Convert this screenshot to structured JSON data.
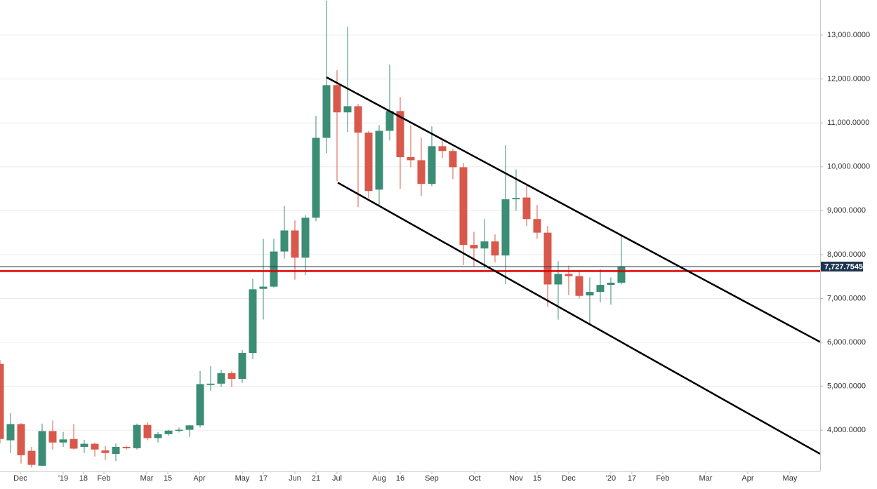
{
  "chart_data": {
    "type": "candlestick",
    "up_color": "#3b8d75",
    "down_color": "#d8584b",
    "grid": true,
    "xlim": [
      0,
      77.87
    ],
    "ylim": [
      3060,
      13800
    ],
    "yticks": [
      {
        "value": 4000,
        "label": "4,000.0000"
      },
      {
        "value": 5000,
        "label": "5,000.0000"
      },
      {
        "value": 6000,
        "label": "6,000.0000"
      },
      {
        "value": 7000,
        "label": "7,000.0000"
      },
      {
        "value": 8000,
        "label": "8,000.0000"
      },
      {
        "value": 9000,
        "label": "9,000.0000"
      },
      {
        "value": 10000,
        "label": "10,000.0000"
      },
      {
        "value": 11000,
        "label": "11,000.0000"
      },
      {
        "value": 12000,
        "label": "12,000.0000"
      },
      {
        "value": 13000,
        "label": "13,000.0000"
      }
    ],
    "xticks": [
      {
        "value": 1.93,
        "label": "Dec"
      },
      {
        "value": 6,
        "label": "'19"
      },
      {
        "value": 7.93,
        "label": "18"
      },
      {
        "value": 9.87,
        "label": "Feb"
      },
      {
        "value": 13.93,
        "label": "Mar"
      },
      {
        "value": 15.93,
        "label": "15"
      },
      {
        "value": 18.93,
        "label": "Apr"
      },
      {
        "value": 23,
        "label": "May"
      },
      {
        "value": 25,
        "label": "17"
      },
      {
        "value": 28,
        "label": "Jun"
      },
      {
        "value": 30,
        "label": "21"
      },
      {
        "value": 32,
        "label": "Jul"
      },
      {
        "value": 36,
        "label": "Aug"
      },
      {
        "value": 38,
        "label": "16"
      },
      {
        "value": 41,
        "label": "Sep"
      },
      {
        "value": 45.07,
        "label": "Oct"
      },
      {
        "value": 49,
        "label": "Nov"
      },
      {
        "value": 51,
        "label": "15"
      },
      {
        "value": 54,
        "label": "Dec"
      },
      {
        "value": 58,
        "label": "'20"
      },
      {
        "value": 60,
        "label": "17"
      },
      {
        "value": 62.93,
        "label": "Feb"
      },
      {
        "value": 67,
        "label": "Mar"
      },
      {
        "value": 71,
        "label": "Apr"
      },
      {
        "value": 75,
        "label": "May"
      }
    ],
    "x": [
      0,
      1,
      2,
      3,
      4,
      5,
      6,
      7,
      8,
      9,
      10,
      11,
      12,
      13,
      14,
      15,
      16,
      17,
      18,
      19,
      20,
      21,
      22,
      23,
      24,
      25,
      26,
      27,
      28,
      29,
      30,
      31,
      32,
      33,
      34,
      35,
      36,
      37,
      38,
      39,
      40,
      41,
      42,
      43,
      44,
      45,
      46,
      47,
      48,
      49,
      50,
      51,
      52,
      53,
      54,
      55,
      56,
      57,
      58,
      59
    ],
    "open": [
      5510,
      3770,
      4140,
      3530,
      3190,
      3980,
      3720,
      3800,
      3620,
      3690,
      3540,
      3460,
      3620,
      3590,
      4120,
      3820,
      3910,
      3990,
      4010,
      4110,
      5030,
      5060,
      5300,
      5170,
      5760,
      7220,
      7270,
      8070,
      8550,
      7930,
      8840,
      10660,
      11860,
      11240,
      11380,
      10780,
      9480,
      10820,
      11270,
      10220,
      10150,
      9610,
      10470,
      10360,
      9990,
      8220,
      8140,
      8300,
      7980,
      9260,
      9300,
      8810,
      8500,
      7320,
      7560,
      7510,
      7070,
      7150,
      7310,
      7360
    ],
    "high": [
      5600,
      4390,
      4160,
      3620,
      4150,
      4220,
      3960,
      4140,
      3780,
      3720,
      3640,
      3700,
      3640,
      4150,
      4180,
      3960,
      4010,
      4060,
      4120,
      5350,
      5460,
      5380,
      5350,
      5830,
      7450,
      8360,
      8360,
      9110,
      8780,
      8900,
      11160,
      13790,
      12200,
      13190,
      11430,
      10820,
      10950,
      12330,
      11590,
      10950,
      10660,
      10920,
      10630,
      10410,
      10090,
      8520,
      8810,
      8460,
      10490,
      9940,
      9580,
      9130,
      8650,
      7850,
      7750,
      7640,
      7480,
      7670,
      7480,
      8440
    ],
    "low": [
      3700,
      3480,
      3240,
      3150,
      3180,
      3560,
      3620,
      3560,
      3480,
      3400,
      3320,
      3300,
      3560,
      3560,
      3770,
      3720,
      3880,
      3950,
      3850,
      4060,
      4900,
      4980,
      4980,
      5080,
      5620,
      6520,
      7250,
      7910,
      7430,
      7530,
      8760,
      10310,
      9670,
      10790,
      9080,
      9290,
      9130,
      10600,
      9500,
      9990,
      9340,
      9560,
      10200,
      9720,
      7760,
      7720,
      7690,
      7820,
      7330,
      9000,
      8650,
      8360,
      6810,
      6520,
      7080,
      7000,
      6430,
      6910,
      6860,
      7320
    ],
    "close": [
      3800,
      4140,
      3430,
      3210,
      3980,
      3720,
      3790,
      3580,
      3690,
      3560,
      3480,
      3620,
      3590,
      4120,
      3820,
      3910,
      3990,
      4010,
      4110,
      5050,
      5060,
      5300,
      5170,
      5760,
      7210,
      7270,
      8070,
      8550,
      7930,
      8840,
      10660,
      11860,
      11240,
      11380,
      10780,
      9450,
      10820,
      11270,
      10220,
      10150,
      9610,
      10470,
      10360,
      9990,
      8220,
      8140,
      8300,
      7980,
      9260,
      9290,
      8810,
      8500,
      7320,
      7560,
      7510,
      7060,
      7150,
      7310,
      7360,
      7727.7545
    ],
    "trendlines": [
      {
        "color": "#000000",
        "x": [
          31,
          77.87
        ],
        "y": [
          12040,
          6010
        ]
      },
      {
        "color": "#000000",
        "x": [
          32.07,
          77.87
        ],
        "y": [
          9640,
          3460
        ]
      }
    ],
    "hline": {
      "value": 7625,
      "color": "#e00000"
    },
    "price_line": {
      "value": 7727.7545,
      "label": "7,727.7545",
      "color": "#1f3450"
    }
  }
}
